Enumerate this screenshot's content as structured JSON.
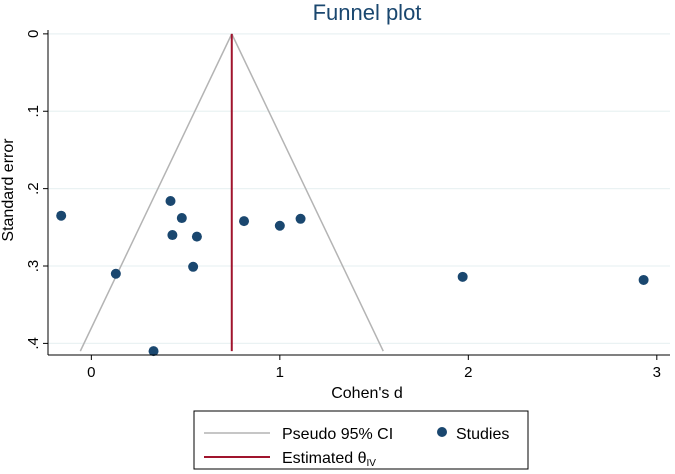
{
  "chart_data": {
    "type": "scatter",
    "title": "Funnel plot",
    "xlabel": "Cohen's d",
    "ylabel": "Standard error",
    "xlim": [
      -0.23,
      3.07
    ],
    "ylim": [
      0.415,
      -0.005
    ],
    "y_reversed": true,
    "x_ticks": [
      0,
      1,
      2,
      3
    ],
    "x_tick_labels": [
      "0",
      "1",
      "2",
      "3"
    ],
    "y_ticks": [
      0,
      0.1,
      0.2,
      0.3,
      0.4
    ],
    "y_tick_labels": [
      "0",
      ".1",
      ".2",
      ".3",
      ".4"
    ],
    "grid": "horizontal",
    "legend_position": "bottom",
    "estimate": 0.745,
    "se_max": 0.41,
    "series": [
      {
        "name": "Studies",
        "points": [
          {
            "x": -0.16,
            "y": 0.235
          },
          {
            "x": 0.13,
            "y": 0.31
          },
          {
            "x": 0.33,
            "y": 0.41
          },
          {
            "x": 0.42,
            "y": 0.216
          },
          {
            "x": 0.43,
            "y": 0.26
          },
          {
            "x": 0.48,
            "y": 0.238
          },
          {
            "x": 0.54,
            "y": 0.301
          },
          {
            "x": 0.56,
            "y": 0.262
          },
          {
            "x": 0.81,
            "y": 0.242
          },
          {
            "x": 1.0,
            "y": 0.248
          },
          {
            "x": 1.11,
            "y": 0.239
          },
          {
            "x": 1.97,
            "y": 0.314
          },
          {
            "x": 2.93,
            "y": 0.318
          }
        ]
      }
    ],
    "legend": {
      "ci_label": "Pseudo 95% CI",
      "studies_label": "Studies",
      "estimate_label": "Estimated θ",
      "estimate_subscript": "IV"
    },
    "colors": {
      "points": "#1a476f",
      "ci_lines": "#b4b4b4",
      "estimate_line": "#a0142d",
      "grid": "#eaf2f3",
      "title": "#1a476f"
    }
  }
}
